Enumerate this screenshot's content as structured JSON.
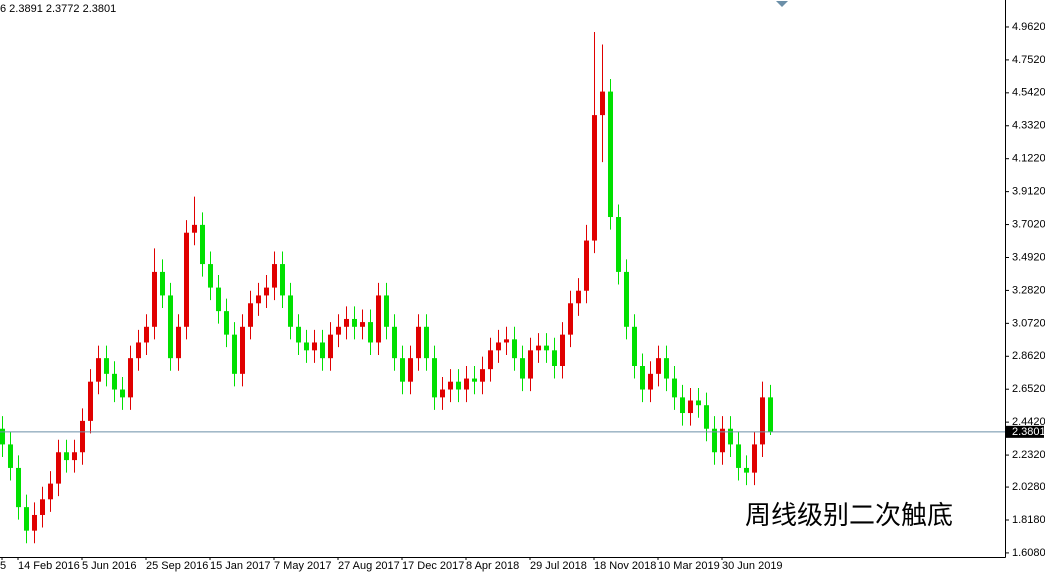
{
  "chart_data": {
    "type": "candlestick",
    "header_text": "6 2.3891 2.3772 2.3801",
    "annotation": "周线级别二次触底",
    "annotation_color": "#e00000",
    "up_color": "#e00000",
    "down_color": "#00e000",
    "last_price": 2.3801,
    "last_price_line_color": "#6b8fa8",
    "ylim": [
      1.582,
      5.134
    ],
    "yticks": [
      {
        "value": 1.608,
        "label": "1.6080"
      },
      {
        "value": 1.818,
        "label": "1.8180"
      },
      {
        "value": 2.028,
        "label": "2.0280"
      },
      {
        "value": 2.232,
        "label": "2.2320"
      },
      {
        "value": 2.442,
        "label": "2.4420"
      },
      {
        "value": 2.652,
        "label": "2.6520"
      },
      {
        "value": 2.862,
        "label": "2.8620"
      },
      {
        "value": 3.072,
        "label": "3.0720"
      },
      {
        "value": 3.282,
        "label": "3.2820"
      },
      {
        "value": 3.492,
        "label": "3.4920"
      },
      {
        "value": 3.702,
        "label": "3.7020"
      },
      {
        "value": 3.912,
        "label": "3.9120"
      },
      {
        "value": 4.122,
        "label": "4.1220"
      },
      {
        "value": 4.332,
        "label": "4.3320"
      },
      {
        "value": 4.542,
        "label": "4.5420"
      },
      {
        "value": 4.752,
        "label": "4.7520"
      },
      {
        "value": 4.962,
        "label": "4.9620"
      }
    ],
    "categories": [
      "5",
      null,
      "14 Feb 2016",
      null,
      null,
      null,
      null,
      null,
      null,
      null,
      "5 Jun 2016",
      null,
      null,
      null,
      null,
      null,
      null,
      null,
      "25 Sep 2016",
      null,
      null,
      null,
      null,
      null,
      null,
      null,
      "15 Jan 2017",
      null,
      null,
      null,
      null,
      null,
      null,
      null,
      "7 May 2017",
      null,
      null,
      null,
      null,
      null,
      null,
      null,
      "27 Aug 2017",
      null,
      null,
      null,
      null,
      null,
      null,
      null,
      "17 Dec 2017",
      null,
      null,
      null,
      null,
      null,
      null,
      null,
      "8 Apr 2018",
      null,
      null,
      null,
      null,
      null,
      null,
      null,
      "29 Jul 2018",
      null,
      null,
      null,
      null,
      null,
      null,
      null,
      "18 Nov 2018",
      null,
      null,
      null,
      null,
      null,
      null,
      null,
      "10 Mar 2019",
      null,
      null,
      null,
      null,
      null,
      null,
      null,
      "30 Jun 2019",
      null,
      null,
      null,
      null,
      null,
      null
    ],
    "open": [
      2.4,
      2.3,
      2.15,
      1.9,
      1.75,
      1.85,
      1.95,
      2.05,
      2.25,
      2.2,
      2.25,
      2.45,
      2.7,
      2.85,
      2.75,
      2.65,
      2.6,
      2.85,
      2.95,
      3.05,
      3.4,
      3.25,
      2.85,
      3.05,
      3.65,
      3.7,
      3.45,
      3.3,
      3.15,
      3.0,
      2.75,
      3.05,
      3.2,
      3.25,
      3.3,
      3.45,
      3.25,
      3.05,
      2.95,
      2.9,
      2.95,
      2.85,
      3.0,
      3.05,
      3.1,
      3.05,
      3.08,
      2.95,
      3.25,
      3.05,
      2.85,
      2.7,
      2.85,
      3.05,
      2.85,
      2.6,
      2.65,
      2.7,
      2.65,
      2.72,
      2.7,
      2.78,
      2.9,
      2.95,
      2.97,
      2.85,
      2.72,
      2.9,
      2.93,
      2.9,
      2.8,
      3.0,
      3.2,
      3.28,
      3.6,
      4.4,
      4.55,
      3.75,
      3.4,
      3.05,
      2.8,
      2.65,
      2.75,
      2.85,
      2.72,
      2.6,
      2.5,
      2.58,
      2.55,
      2.4,
      2.25,
      2.4,
      2.3,
      2.15,
      2.12,
      2.3,
      2.6
    ],
    "high": [
      2.48,
      2.38,
      2.23,
      1.98,
      1.93,
      2.03,
      2.13,
      2.33,
      2.33,
      2.33,
      2.53,
      2.78,
      2.93,
      2.93,
      2.83,
      2.73,
      2.93,
      3.03,
      3.13,
      3.55,
      3.48,
      3.33,
      3.13,
      3.73,
      3.88,
      3.78,
      3.53,
      3.38,
      3.23,
      3.08,
      3.13,
      3.28,
      3.33,
      3.38,
      3.53,
      3.53,
      3.33,
      3.13,
      3.03,
      3.03,
      3.03,
      3.08,
      3.13,
      3.18,
      3.18,
      3.16,
      3.16,
      3.33,
      3.33,
      3.13,
      2.93,
      2.93,
      3.13,
      3.13,
      2.93,
      2.73,
      2.78,
      2.78,
      2.8,
      2.8,
      2.86,
      2.98,
      3.03,
      3.05,
      3.05,
      2.93,
      2.98,
      3.01,
      3.01,
      2.98,
      3.08,
      3.28,
      3.36,
      3.7,
      4.93,
      4.85,
      4.63,
      3.83,
      3.48,
      3.13,
      2.88,
      2.83,
      2.93,
      2.93,
      2.8,
      2.68,
      2.66,
      2.66,
      2.63,
      2.48,
      2.48,
      2.48,
      2.38,
      2.23,
      2.38,
      2.7,
      2.68
    ],
    "low": [
      2.22,
      2.07,
      1.82,
      1.67,
      1.67,
      1.77,
      1.87,
      1.97,
      2.12,
      2.12,
      2.17,
      2.37,
      2.62,
      2.67,
      2.57,
      2.52,
      2.52,
      2.77,
      2.87,
      2.97,
      3.17,
      2.77,
      2.77,
      2.97,
      3.57,
      3.37,
      3.22,
      3.07,
      2.92,
      2.67,
      2.67,
      2.97,
      3.12,
      3.17,
      3.22,
      3.17,
      2.97,
      2.87,
      2.82,
      2.82,
      2.77,
      2.77,
      2.92,
      2.97,
      2.97,
      2.97,
      2.87,
      2.87,
      2.97,
      2.77,
      2.62,
      2.62,
      2.77,
      2.77,
      2.52,
      2.52,
      2.57,
      2.57,
      2.57,
      2.62,
      2.62,
      2.7,
      2.82,
      2.87,
      2.77,
      2.64,
      2.64,
      2.82,
      2.82,
      2.72,
      2.72,
      2.92,
      3.12,
      3.2,
      3.52,
      4.1,
      3.67,
      3.32,
      2.97,
      2.72,
      2.57,
      2.57,
      2.67,
      2.64,
      2.52,
      2.42,
      2.42,
      2.47,
      2.32,
      2.17,
      2.17,
      2.22,
      2.07,
      2.04,
      2.04,
      2.22,
      2.36
    ],
    "close": [
      2.3,
      2.15,
      1.9,
      1.75,
      1.85,
      1.95,
      2.05,
      2.25,
      2.2,
      2.25,
      2.45,
      2.7,
      2.85,
      2.75,
      2.65,
      2.6,
      2.85,
      2.95,
      3.05,
      3.4,
      3.25,
      2.85,
      3.05,
      3.65,
      3.7,
      3.45,
      3.3,
      3.15,
      3.0,
      2.75,
      3.05,
      3.2,
      3.25,
      3.3,
      3.45,
      3.25,
      3.05,
      2.95,
      2.9,
      2.95,
      2.85,
      3.0,
      3.05,
      3.1,
      3.05,
      3.08,
      2.95,
      3.25,
      3.05,
      2.85,
      2.7,
      2.85,
      3.05,
      2.85,
      2.6,
      2.65,
      2.7,
      2.65,
      2.72,
      2.7,
      2.78,
      2.9,
      2.95,
      2.97,
      2.85,
      2.72,
      2.9,
      2.93,
      2.9,
      2.8,
      3.0,
      3.2,
      3.28,
      3.6,
      4.4,
      4.55,
      3.75,
      3.4,
      3.05,
      2.8,
      2.65,
      2.75,
      2.85,
      2.72,
      2.6,
      2.5,
      2.58,
      2.55,
      2.4,
      2.25,
      2.4,
      2.3,
      2.15,
      2.12,
      2.3,
      2.6,
      2.38
    ]
  }
}
